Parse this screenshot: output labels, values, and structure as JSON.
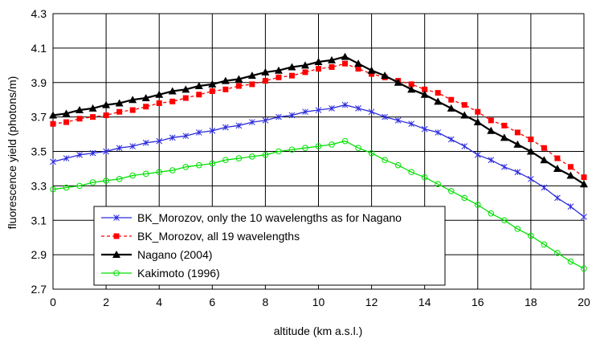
{
  "chart_data": {
    "type": "line",
    "title": "",
    "xlabel": "altitude (km a.s.l.)",
    "ylabel": "fluorescence yield (photons/m)",
    "xlim": [
      0,
      20
    ],
    "ylim": [
      2.7,
      4.3
    ],
    "xticks": [
      0,
      2,
      4,
      6,
      8,
      10,
      12,
      14,
      16,
      18,
      20
    ],
    "yticks": [
      2.7,
      2.9,
      3.1,
      3.3,
      3.5,
      3.7,
      3.9,
      4.1,
      4.3
    ],
    "xtick_labels": [
      "0",
      "2",
      "4",
      "6",
      "8",
      "10",
      "12",
      "14",
      "16",
      "18",
      "20"
    ],
    "ytick_labels": [
      "2.7",
      "2.9",
      "3.1",
      "3.3",
      "3.5",
      "3.7",
      "3.9",
      "4.1",
      "4.3"
    ],
    "grid": true,
    "legend_position": "bottom-left",
    "x": [
      0,
      0.5,
      1,
      1.5,
      2,
      2.5,
      3,
      3.5,
      4,
      4.5,
      5,
      5.5,
      6,
      6.5,
      7,
      7.5,
      8,
      8.5,
      9,
      9.5,
      10,
      10.5,
      11,
      11.5,
      12,
      12.5,
      13,
      13.5,
      14,
      14.5,
      15,
      15.5,
      16,
      16.5,
      17,
      17.5,
      18,
      18.5,
      19,
      19.5,
      20
    ],
    "series": [
      {
        "name": "BK_Morozov, only the 10 wavelengths as for Nagano",
        "color": "#2b2bdc",
        "marker": "star",
        "dash": "solid",
        "values": [
          3.44,
          3.46,
          3.48,
          3.49,
          3.5,
          3.52,
          3.53,
          3.55,
          3.56,
          3.58,
          3.59,
          3.61,
          3.62,
          3.64,
          3.65,
          3.67,
          3.68,
          3.7,
          3.71,
          3.73,
          3.74,
          3.75,
          3.77,
          3.75,
          3.73,
          3.7,
          3.68,
          3.66,
          3.63,
          3.61,
          3.57,
          3.53,
          3.48,
          3.45,
          3.41,
          3.38,
          3.34,
          3.29,
          3.23,
          3.18,
          3.12
        ]
      },
      {
        "name": "BK_Morozov, all 19 wavelengths",
        "color": "#ff0000",
        "marker": "square",
        "dash": "dashed",
        "values": [
          3.66,
          3.67,
          3.69,
          3.7,
          3.71,
          3.73,
          3.74,
          3.76,
          3.78,
          3.79,
          3.81,
          3.83,
          3.85,
          3.86,
          3.88,
          3.89,
          3.91,
          3.93,
          3.94,
          3.96,
          3.98,
          3.99,
          4.01,
          3.98,
          3.95,
          3.93,
          3.91,
          3.89,
          3.86,
          3.84,
          3.8,
          3.77,
          3.73,
          3.68,
          3.65,
          3.61,
          3.57,
          3.52,
          3.46,
          3.41,
          3.35
        ]
      },
      {
        "name": "Nagano (2004)",
        "color": "#000000",
        "marker": "triangle",
        "dash": "solid",
        "values": [
          3.71,
          3.72,
          3.74,
          3.75,
          3.77,
          3.78,
          3.8,
          3.81,
          3.83,
          3.85,
          3.86,
          3.88,
          3.89,
          3.91,
          3.92,
          3.94,
          3.96,
          3.97,
          3.99,
          4.0,
          4.02,
          4.03,
          4.05,
          4.01,
          3.97,
          3.94,
          3.9,
          3.86,
          3.83,
          3.79,
          3.75,
          3.71,
          3.67,
          3.62,
          3.58,
          3.54,
          3.5,
          3.45,
          3.4,
          3.36,
          3.31
        ]
      },
      {
        "name": "Kakimoto (1996)",
        "color": "#00e000",
        "marker": "circle",
        "dash": "solid",
        "values": [
          3.28,
          3.29,
          3.3,
          3.32,
          3.33,
          3.34,
          3.36,
          3.37,
          3.38,
          3.39,
          3.41,
          3.42,
          3.43,
          3.45,
          3.46,
          3.47,
          3.48,
          3.5,
          3.51,
          3.52,
          3.53,
          3.54,
          3.56,
          3.52,
          3.49,
          3.45,
          3.42,
          3.38,
          3.35,
          3.31,
          3.27,
          3.23,
          3.19,
          3.14,
          3.1,
          3.05,
          3.01,
          2.96,
          2.91,
          2.86,
          2.82
        ]
      }
    ]
  }
}
